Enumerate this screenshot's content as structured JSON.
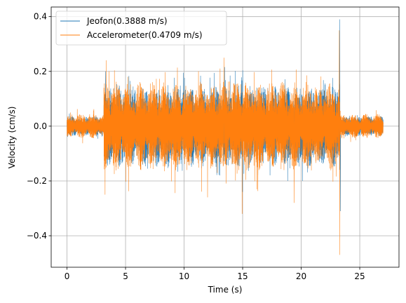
{
  "chart_data": {
    "type": "line",
    "title": "",
    "xlabel": "Time (s)",
    "ylabel": "Velocity (cm/s)",
    "xlim": [
      -1.35,
      28.35
    ],
    "ylim": [
      -0.515,
      0.435
    ],
    "xticks": [
      0,
      5,
      10,
      15,
      20,
      25
    ],
    "xtick_labels": [
      "0",
      "5",
      "10",
      "15",
      "20",
      "25"
    ],
    "yticks": [
      -0.4,
      -0.2,
      0.0,
      0.2,
      0.4
    ],
    "ytick_labels": [
      "−0.4",
      "−0.2",
      "0.0",
      "0.2",
      "0.4"
    ],
    "grid": true,
    "legend_position": "upper-left",
    "series": [
      {
        "name": "Jeofon(0.3888 m/s)",
        "color": "#1f77b4",
        "x_range": [
          0,
          27
        ],
        "envelope": [
          {
            "t0": 0.0,
            "t1": 3.15,
            "amp": 0.038
          },
          {
            "t0": 3.15,
            "t1": 23.3,
            "amp": 0.15
          },
          {
            "t0": 23.3,
            "t1": 27.0,
            "amp": 0.038
          }
        ],
        "peaks": [
          {
            "x": 23.3,
            "y": 0.39
          },
          {
            "x": 23.35,
            "y": -0.31
          },
          {
            "x": 15.0,
            "y": -0.24
          },
          {
            "x": 3.3,
            "y": 0.2
          }
        ]
      },
      {
        "name": "Accelerometer(0.4709 m/s)",
        "color": "#ff7f0e",
        "x_range": [
          0,
          27
        ],
        "envelope": [
          {
            "t0": 0.0,
            "t1": 3.15,
            "amp": 0.045
          },
          {
            "t0": 3.15,
            "t1": 23.3,
            "amp": 0.165
          },
          {
            "t0": 23.3,
            "t1": 27.0,
            "amp": 0.045
          }
        ],
        "peaks": [
          {
            "x": 23.25,
            "y": 0.35
          },
          {
            "x": 23.3,
            "y": -0.47
          },
          {
            "x": 14.95,
            "y": -0.32
          },
          {
            "x": 13.4,
            "y": 0.25
          },
          {
            "x": 3.25,
            "y": -0.25
          },
          {
            "x": 3.6,
            "y": 0.2
          },
          {
            "x": 19.4,
            "y": -0.28
          },
          {
            "x": 12.0,
            "y": -0.26
          }
        ]
      }
    ]
  }
}
